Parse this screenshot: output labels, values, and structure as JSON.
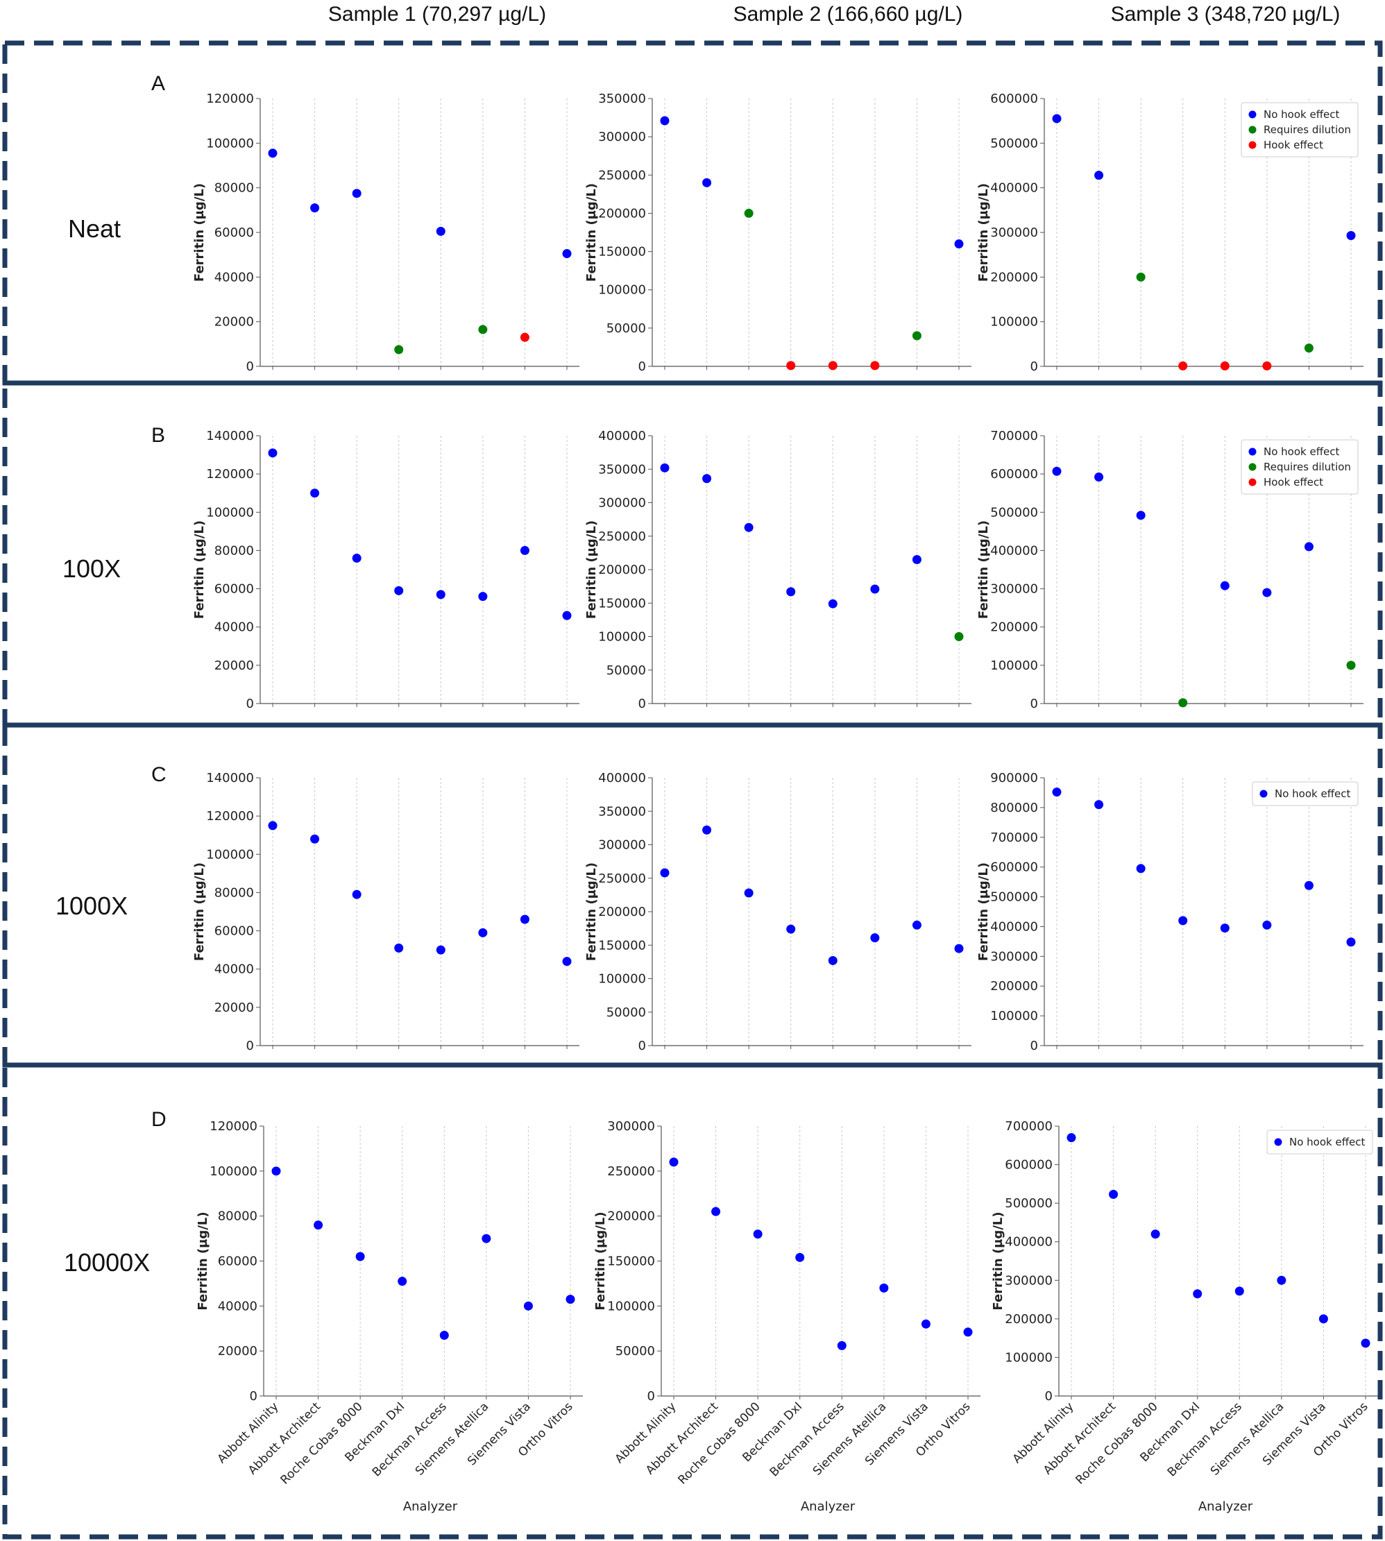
{
  "column_headers": [
    "Sample 1 (70,297 µg/L)",
    "Sample 2 (166,660 µg/L)",
    "Sample 3 (348,720 µg/L)"
  ],
  "rows": [
    {
      "letter": "A",
      "label": "Neat"
    },
    {
      "letter": "B",
      "label": "100X"
    },
    {
      "letter": "C",
      "label": "1000X"
    },
    {
      "letter": "D",
      "label": "10000X"
    }
  ],
  "colors": {
    "No hook effect": "#0000ff",
    "Requires dilution": "#008000",
    "Hook effect": "#ff0000",
    "frame": "#1f3a5f"
  },
  "chart_data": [
    {
      "type": "scatter",
      "panel": "A",
      "sample": "Sample 1",
      "ylabel": "Ferritin (µg/L)",
      "xlabel": "",
      "ylim": [
        0,
        120000
      ],
      "yticks": [
        0,
        20000,
        40000,
        60000,
        80000,
        100000,
        120000
      ],
      "categories": [
        "Abbott Alinity",
        "Abbott Architect",
        "Roche Cobas 8000",
        "Beckman DxI",
        "Beckman Access",
        "Siemens Atellica",
        "Siemens Vista",
        "Ortho Vitros"
      ],
      "values": [
        95500,
        71000,
        77500,
        7500,
        60500,
        16500,
        13000,
        50500
      ],
      "status": [
        "No hook effect",
        "No hook effect",
        "No hook effect",
        "Requires dilution",
        "No hook effect",
        "Requires dilution",
        "Hook effect",
        "No hook effect"
      ]
    },
    {
      "type": "scatter",
      "panel": "A",
      "sample": "Sample 2",
      "ylabel": "Ferritin (µg/L)",
      "xlabel": "",
      "ylim": [
        0,
        350000
      ],
      "yticks": [
        0,
        50000,
        100000,
        150000,
        200000,
        250000,
        300000,
        350000
      ],
      "categories": [
        "Abbott Alinity",
        "Abbott Architect",
        "Roche Cobas 8000",
        "Beckman DxI",
        "Beckman Access",
        "Siemens Atellica",
        "Siemens Vista",
        "Ortho Vitros"
      ],
      "values": [
        321000,
        240000,
        200000,
        1000,
        1000,
        1000,
        40000,
        160000
      ],
      "status": [
        "No hook effect",
        "No hook effect",
        "Requires dilution",
        "Hook effect",
        "Hook effect",
        "Hook effect",
        "Requires dilution",
        "No hook effect"
      ]
    },
    {
      "type": "scatter",
      "panel": "A",
      "sample": "Sample 3",
      "ylabel": "Ferritin (µg/L)",
      "xlabel": "",
      "ylim": [
        0,
        600000
      ],
      "yticks": [
        0,
        100000,
        200000,
        300000,
        400000,
        500000,
        600000
      ],
      "categories": [
        "Abbott Alinity",
        "Abbott Architect",
        "Roche Cobas 8000",
        "Beckman DxI",
        "Beckman Access",
        "Siemens Atellica",
        "Siemens Vista",
        "Ortho Vitros"
      ],
      "values": [
        555000,
        428000,
        200000,
        1000,
        1000,
        1000,
        41000,
        293000
      ],
      "status": [
        "No hook effect",
        "No hook effect",
        "Requires dilution",
        "Hook effect",
        "Hook effect",
        "Hook effect",
        "Requires dilution",
        "No hook effect"
      ],
      "legend": [
        "No hook effect",
        "Requires dilution",
        "Hook effect"
      ]
    },
    {
      "type": "scatter",
      "panel": "B",
      "sample": "Sample 1",
      "ylabel": "Ferritin (µg/L)",
      "xlabel": "",
      "ylim": [
        0,
        140000
      ],
      "yticks": [
        0,
        20000,
        40000,
        60000,
        80000,
        100000,
        120000,
        140000
      ],
      "categories": [
        "Abbott Alinity",
        "Abbott Architect",
        "Roche Cobas 8000",
        "Beckman DxI",
        "Beckman Access",
        "Siemens Atellica",
        "Siemens Vista",
        "Ortho Vitros"
      ],
      "values": [
        131000,
        110000,
        76000,
        59000,
        57000,
        56000,
        80000,
        46000
      ],
      "status": [
        "No hook effect",
        "No hook effect",
        "No hook effect",
        "No hook effect",
        "No hook effect",
        "No hook effect",
        "No hook effect",
        "No hook effect"
      ]
    },
    {
      "type": "scatter",
      "panel": "B",
      "sample": "Sample 2",
      "ylabel": "Ferritin (µg/L)",
      "xlabel": "",
      "ylim": [
        0,
        400000
      ],
      "yticks": [
        0,
        50000,
        100000,
        150000,
        200000,
        250000,
        300000,
        350000,
        400000
      ],
      "categories": [
        "Abbott Alinity",
        "Abbott Architect",
        "Roche Cobas 8000",
        "Beckman DxI",
        "Beckman Access",
        "Siemens Atellica",
        "Siemens Vista",
        "Ortho Vitros"
      ],
      "values": [
        352000,
        336000,
        263000,
        167000,
        149000,
        171000,
        215000,
        100000
      ],
      "status": [
        "No hook effect",
        "No hook effect",
        "No hook effect",
        "No hook effect",
        "No hook effect",
        "No hook effect",
        "No hook effect",
        "Requires dilution"
      ]
    },
    {
      "type": "scatter",
      "panel": "B",
      "sample": "Sample 3",
      "ylabel": "Ferritin (µg/L)",
      "xlabel": "",
      "ylim": [
        0,
        700000
      ],
      "yticks": [
        0,
        100000,
        200000,
        300000,
        400000,
        500000,
        600000,
        700000
      ],
      "categories": [
        "Abbott Alinity",
        "Abbott Architect",
        "Roche Cobas 8000",
        "Beckman DxI",
        "Beckman Access",
        "Siemens Atellica",
        "Siemens Vista",
        "Ortho Vitros"
      ],
      "values": [
        607000,
        592000,
        492000,
        2000,
        308000,
        290000,
        410000,
        100000
      ],
      "status": [
        "No hook effect",
        "No hook effect",
        "No hook effect",
        "Requires dilution",
        "No hook effect",
        "No hook effect",
        "No hook effect",
        "Requires dilution"
      ],
      "legend": [
        "No hook effect",
        "Requires dilution",
        "Hook effect"
      ]
    },
    {
      "type": "scatter",
      "panel": "C",
      "sample": "Sample 1",
      "ylabel": "Ferritin (µg/L)",
      "xlabel": "",
      "ylim": [
        0,
        140000
      ],
      "yticks": [
        0,
        20000,
        40000,
        60000,
        80000,
        100000,
        120000,
        140000
      ],
      "categories": [
        "Abbott Alinity",
        "Abbott Architect",
        "Roche Cobas 8000",
        "Beckman DxI",
        "Beckman Access",
        "Siemens Atellica",
        "Siemens Vista",
        "Ortho Vitros"
      ],
      "values": [
        115000,
        108000,
        79000,
        51000,
        50000,
        59000,
        66000,
        44000
      ],
      "status": [
        "No hook effect",
        "No hook effect",
        "No hook effect",
        "No hook effect",
        "No hook effect",
        "No hook effect",
        "No hook effect",
        "No hook effect"
      ]
    },
    {
      "type": "scatter",
      "panel": "C",
      "sample": "Sample 2",
      "ylabel": "Ferritin (µg/L)",
      "xlabel": "",
      "ylim": [
        0,
        400000
      ],
      "yticks": [
        0,
        50000,
        100000,
        150000,
        200000,
        250000,
        300000,
        350000,
        400000
      ],
      "categories": [
        "Abbott Alinity",
        "Abbott Architect",
        "Roche Cobas 8000",
        "Beckman DxI",
        "Beckman Access",
        "Siemens Atellica",
        "Siemens Vista",
        "Ortho Vitros"
      ],
      "values": [
        258000,
        322000,
        228000,
        174000,
        127000,
        161000,
        180000,
        145000
      ],
      "status": [
        "No hook effect",
        "No hook effect",
        "No hook effect",
        "No hook effect",
        "No hook effect",
        "No hook effect",
        "No hook effect",
        "No hook effect"
      ]
    },
    {
      "type": "scatter",
      "panel": "C",
      "sample": "Sample 3",
      "ylabel": "Ferritin (µg/L)",
      "xlabel": "",
      "ylim": [
        0,
        900000
      ],
      "yticks": [
        0,
        100000,
        200000,
        300000,
        400000,
        500000,
        600000,
        700000,
        800000,
        900000
      ],
      "categories": [
        "Abbott Alinity",
        "Abbott Architect",
        "Roche Cobas 8000",
        "Beckman DxI",
        "Beckman Access",
        "Siemens Atellica",
        "Siemens Vista",
        "Ortho Vitros"
      ],
      "values": [
        852000,
        810000,
        595000,
        420000,
        395000,
        405000,
        538000,
        348000
      ],
      "status": [
        "No hook effect",
        "No hook effect",
        "No hook effect",
        "No hook effect",
        "No hook effect",
        "No hook effect",
        "No hook effect",
        "No hook effect"
      ],
      "legend": [
        "No hook effect"
      ]
    },
    {
      "type": "scatter",
      "panel": "D",
      "sample": "Sample 1",
      "ylabel": "Ferritin (µg/L)",
      "xlabel": "Analyzer",
      "ylim": [
        0,
        120000
      ],
      "yticks": [
        0,
        20000,
        40000,
        60000,
        80000,
        100000,
        120000
      ],
      "categories": [
        "Abbott Alinity",
        "Abbott Architect",
        "Roche Cobas 8000",
        "Beckman DxI",
        "Beckman Access",
        "Siemens Atellica",
        "Siemens Vista",
        "Ortho Vitros"
      ],
      "values": [
        100000,
        76000,
        62000,
        51000,
        27000,
        70000,
        40000,
        43000
      ],
      "status": [
        "No hook effect",
        "No hook effect",
        "No hook effect",
        "No hook effect",
        "No hook effect",
        "No hook effect",
        "No hook effect",
        "No hook effect"
      ]
    },
    {
      "type": "scatter",
      "panel": "D",
      "sample": "Sample 2",
      "ylabel": "Ferritin (µg/L)",
      "xlabel": "Analyzer",
      "ylim": [
        0,
        300000
      ],
      "yticks": [
        0,
        50000,
        100000,
        150000,
        200000,
        250000,
        300000
      ],
      "categories": [
        "Abbott Alinity",
        "Abbott Architect",
        "Roche Cobas 8000",
        "Beckman DxI",
        "Beckman Access",
        "Siemens Atellica",
        "Siemens Vista",
        "Ortho Vitros"
      ],
      "values": [
        260000,
        205000,
        180000,
        154000,
        56000,
        120000,
        80000,
        71000
      ],
      "status": [
        "No hook effect",
        "No hook effect",
        "No hook effect",
        "No hook effect",
        "No hook effect",
        "No hook effect",
        "No hook effect",
        "No hook effect"
      ]
    },
    {
      "type": "scatter",
      "panel": "D",
      "sample": "Sample 3",
      "ylabel": "Ferritin (µg/L)",
      "xlabel": "Analyzer",
      "ylim": [
        0,
        700000
      ],
      "yticks": [
        0,
        100000,
        200000,
        300000,
        400000,
        500000,
        600000,
        700000
      ],
      "categories": [
        "Abbott Alinity",
        "Abbott Architect",
        "Roche Cobas 8000",
        "Beckman DxI",
        "Beckman Access",
        "Siemens Atellica",
        "Siemens Vista",
        "Ortho Vitros"
      ],
      "values": [
        670000,
        523000,
        420000,
        265000,
        272000,
        300000,
        200000,
        137000
      ],
      "status": [
        "No hook effect",
        "No hook effect",
        "No hook effect",
        "No hook effect",
        "No hook effect",
        "No hook effect",
        "No hook effect",
        "No hook effect"
      ],
      "legend": [
        "No hook effect"
      ]
    }
  ]
}
